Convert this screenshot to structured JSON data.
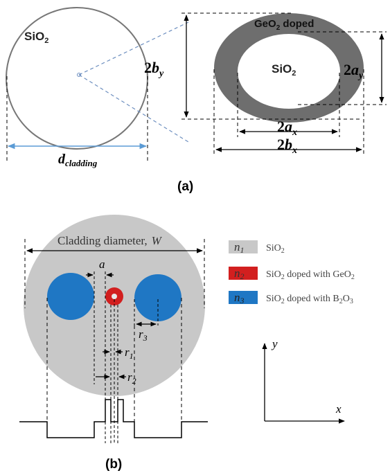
{
  "panel_a": {
    "caption": "(a)",
    "cladding_material": "SiO",
    "cladding_material_sub": "2",
    "cladding_dim_label": "d",
    "cladding_dim_sub": "cladding",
    "doped_ring_label": "GeO",
    "doped_ring_sub": "2",
    "doped_ring_suffix": " doped",
    "core_material": "SiO",
    "core_material_sub": "2",
    "dim_2by": {
      "num": "2",
      "var": "b",
      "sub": "y"
    },
    "dim_2ay": {
      "num": "2",
      "var": "a",
      "sub": "y"
    },
    "dim_2ax": {
      "num": "2",
      "var": "a",
      "sub": "x"
    },
    "dim_2bx": {
      "num": "2",
      "var": "b",
      "sub": "x"
    }
  },
  "panel_b": {
    "caption": "(b)",
    "cladding_diameter_label": "Cladding diameter,",
    "cladding_diameter_var": "W",
    "label_a": "a",
    "label_r1": "r",
    "label_r1_sub": "1",
    "label_r2": "r",
    "label_r2_sub": "2",
    "label_r3": "r",
    "label_r3_sub": "3",
    "axis_x": "x",
    "axis_y": "y",
    "legend": [
      {
        "index": "n",
        "index_sub": "1",
        "text": "SiO",
        "text_sub": "2",
        "text_rest": "",
        "text_sub2": "",
        "color": "#c8c8c8"
      },
      {
        "index": "n",
        "index_sub": "2",
        "text": "SiO",
        "text_sub": "2",
        "text_rest": " doped with GeO",
        "text_sub2": "2",
        "color": "#d21f1f"
      },
      {
        "index": "n",
        "index_sub": "3",
        "text": "SiO",
        "text_sub": "2",
        "text_rest": " doped with B",
        "text_sub2": "2",
        "text_rest2": "O",
        "text_sub3": "3",
        "color": "#1f77c4"
      }
    ]
  },
  "colors": {
    "cladding_a_stroke": "#777777",
    "dashed_blue": "#6c8ebf",
    "ring_gray": "#6e6e6e",
    "cladding_b_fill": "#c8c8c8",
    "stress_rod_blue": "#1f77c4",
    "core_red": "#d21f1f",
    "arrow_blue": "#5b9bd5"
  }
}
